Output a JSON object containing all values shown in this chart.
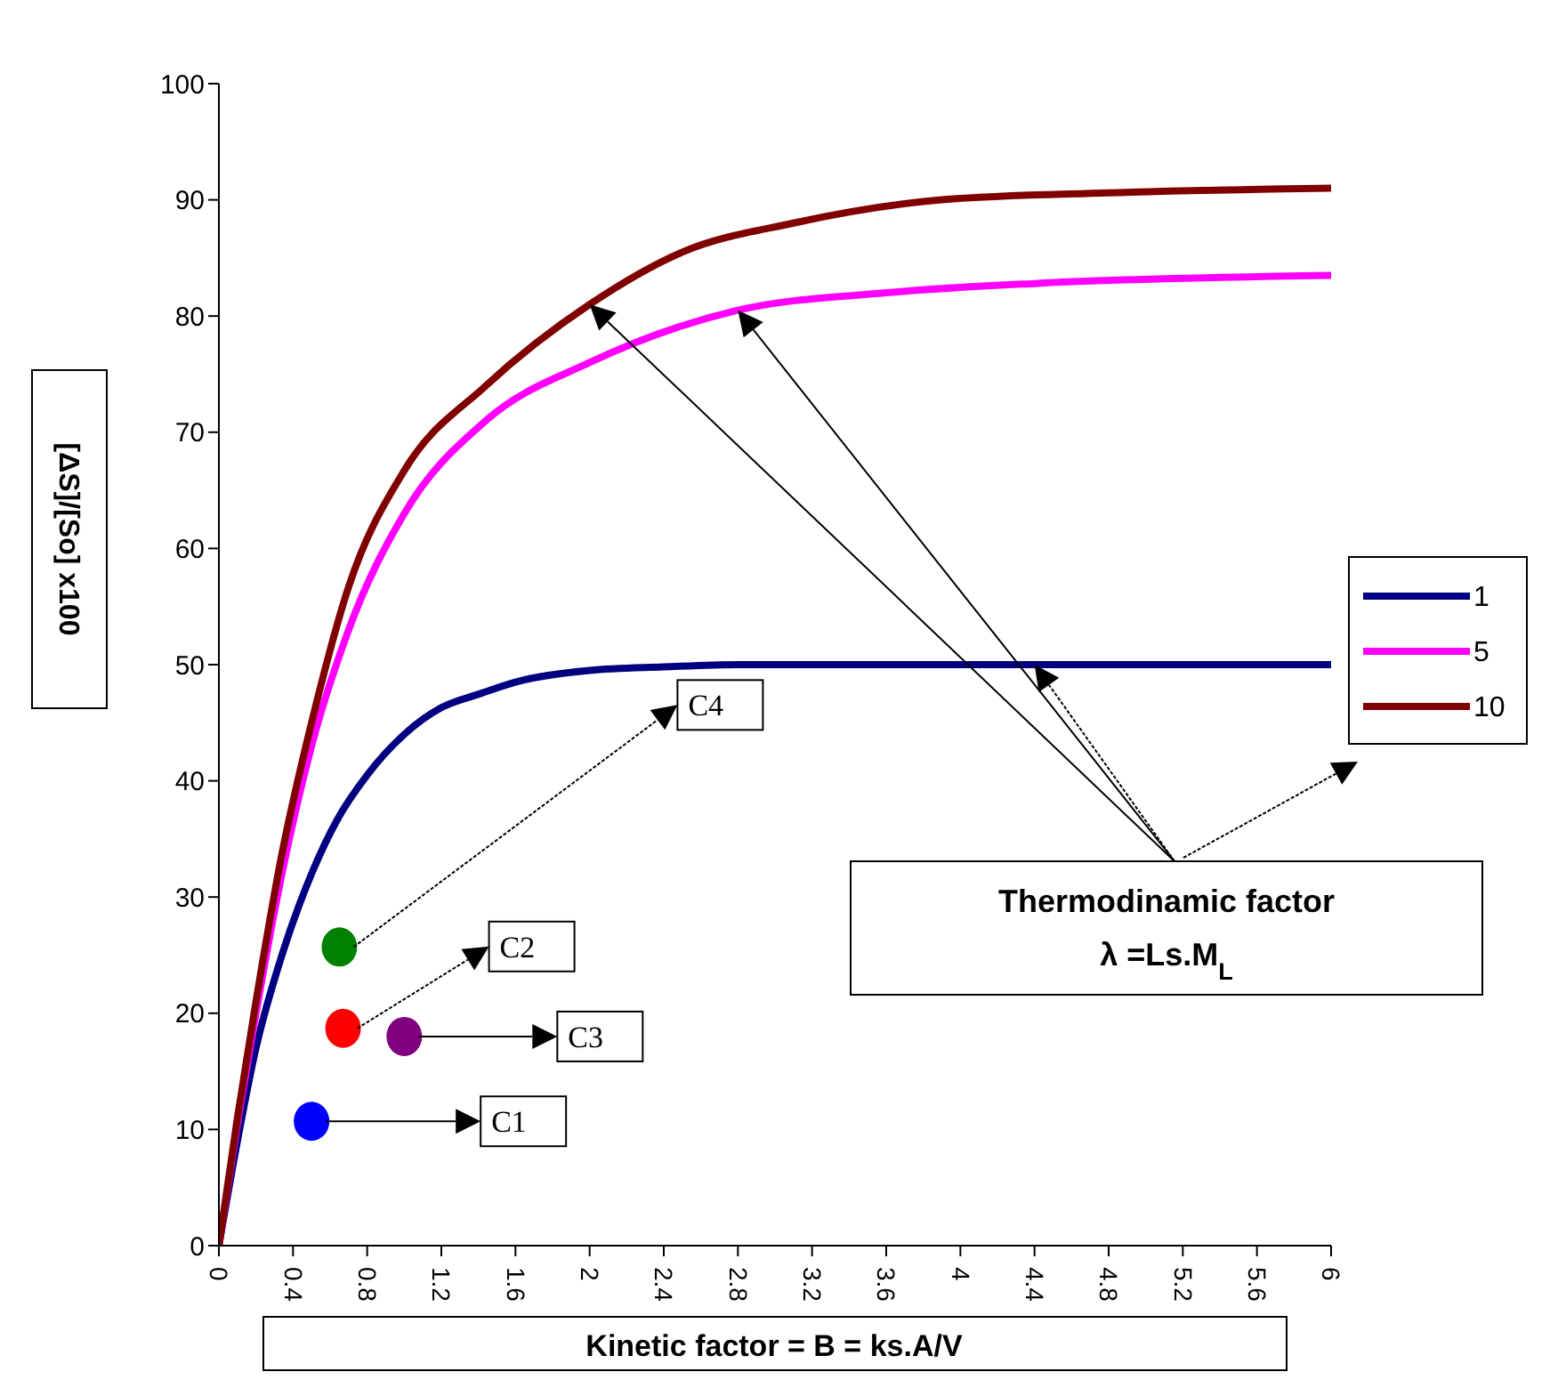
{
  "chart_data": {
    "type": "line",
    "xlabel": "Kinetic factor = B = ks.A/V",
    "ylabel": "[ΔS]/[So] x100",
    "legend": "right",
    "grid": false,
    "marker": "none",
    "line_style": "solid",
    "xlim": [
      0,
      6
    ],
    "xticks": [
      0,
      0.4,
      0.8,
      1.2,
      1.6,
      2,
      2.4,
      2.8,
      3.2,
      3.6,
      4,
      4.4,
      4.8,
      5.2,
      5.6,
      6
    ],
    "ylim": [
      0,
      100
    ],
    "yticks": [
      0,
      10,
      20,
      30,
      40,
      50,
      60,
      70,
      80,
      90,
      100
    ],
    "series": [
      {
        "name": "1",
        "color": "#000080",
        "x": [
          0,
          0.1,
          0.2,
          0.34,
          0.5,
          0.64,
          0.8,
          1.0,
          1.2,
          1.41,
          1.6,
          2.0,
          2.4,
          2.8,
          4.4,
          6
        ],
        "values": [
          0,
          9,
          17,
          25,
          32,
          36.7,
          40.5,
          44,
          46.3,
          47.5,
          48.5,
          49.5,
          49.8,
          50,
          50,
          50
        ]
      },
      {
        "name": "5",
        "color": "#ff00ff",
        "x": [
          0,
          0.1,
          0.2,
          0.34,
          0.5,
          0.7,
          1.0,
          1.44,
          2.0,
          2.8,
          3.6,
          4.4,
          6
        ],
        "values": [
          0,
          10.5,
          20,
          32,
          43,
          53,
          63,
          71,
          76,
          80.5,
          82,
          82.8,
          83.5
        ]
      },
      {
        "name": "10",
        "color": "#800000",
        "x": [
          0,
          0.1,
          0.2,
          0.34,
          0.5,
          0.7,
          1.0,
          1.44,
          2.0,
          2.5,
          3.1,
          3.9,
          4.8,
          6
        ],
        "values": [
          0,
          11,
          21,
          33.7,
          45,
          56.7,
          66.7,
          74,
          81,
          85.5,
          88,
          90,
          90.6,
          91
        ]
      },
      {
        "type": "scatter",
        "marker": "circle",
        "color": "#0000ff",
        "x": [
          0.5
        ],
        "values": [
          10.7
        ]
      },
      {
        "type": "scatter",
        "marker": "circle",
        "color": "#ff0000",
        "x": [
          0.67
        ],
        "values": [
          18.7
        ]
      },
      {
        "type": "scatter",
        "marker": "circle",
        "color": "#800080",
        "x": [
          1.0
        ],
        "values": [
          18
        ]
      },
      {
        "type": "scatter",
        "marker": "circle",
        "color": "#008000",
        "x": [
          0.65
        ],
        "values": [
          25.7
        ]
      }
    ],
    "annotations": [
      {
        "text": "C1",
        "x": 0.5,
        "y": 10.7
      },
      {
        "text": "C2",
        "x": 0.67,
        "y": 18.7
      },
      {
        "text": "C3",
        "x": 1.0,
        "y": 18
      },
      {
        "text": "C4",
        "x": 0.65,
        "y": 25.7
      },
      "Thermodinamic factor\nλ =Ls.M$_{L}$"
    ]
  }
}
